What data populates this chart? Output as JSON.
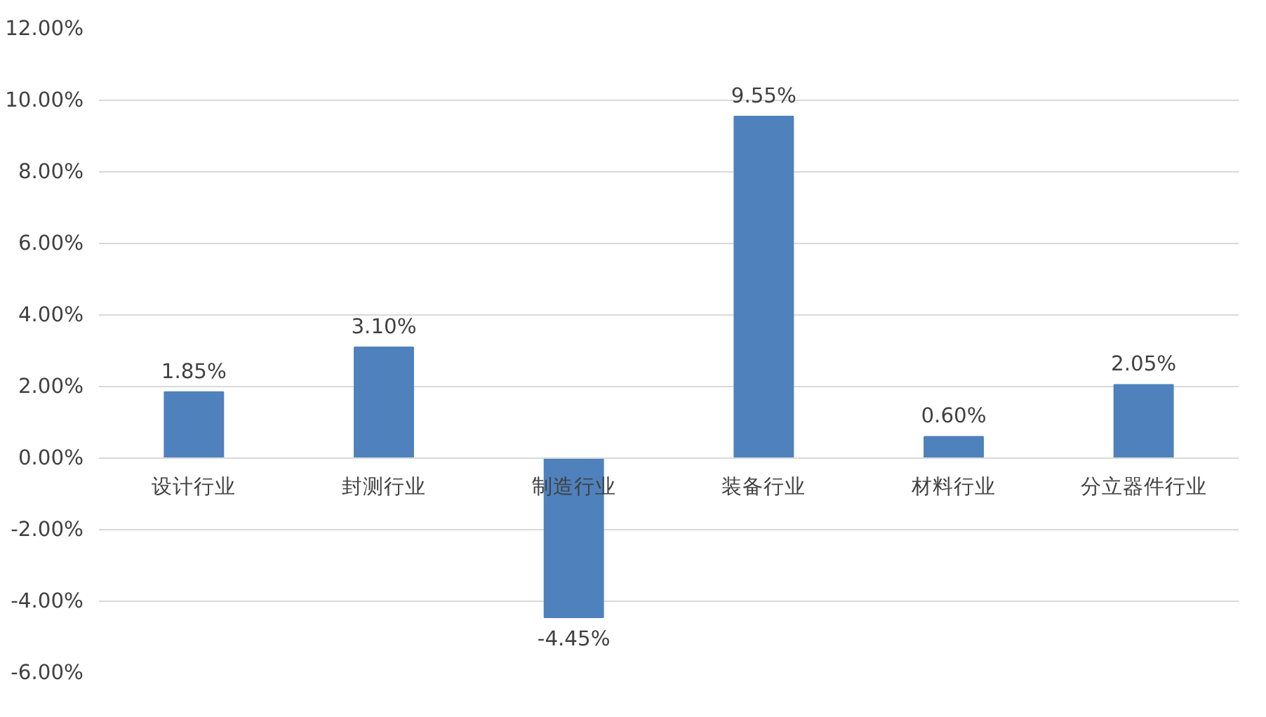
{
  "chart_data": {
    "type": "bar",
    "categories": [
      "设计行业",
      "封测行业",
      "制造行业",
      "装备行业",
      "材料行业",
      "分立器件行业"
    ],
    "values": [
      1.85,
      3.1,
      -4.45,
      9.55,
      0.6,
      2.05
    ],
    "value_labels": [
      "1.85%",
      "3.10%",
      "-4.45%",
      "9.55%",
      "0.60%",
      "2.05%"
    ],
    "color": "#4f81bd",
    "ylim": [
      -6,
      12
    ],
    "yticks": [
      {
        "value": -6,
        "label": "-6.00%"
      },
      {
        "value": -4,
        "label": "-4.00%"
      },
      {
        "value": -2,
        "label": "-2.00%"
      },
      {
        "value": 0,
        "label": "0.00%"
      },
      {
        "value": 2,
        "label": "2.00%"
      },
      {
        "value": 4,
        "label": "4.00%"
      },
      {
        "value": 6,
        "label": "6.00%"
      },
      {
        "value": 8,
        "label": "8.00%"
      },
      {
        "value": 10,
        "label": "10.00%"
      },
      {
        "value": 12,
        "label": "12.00%"
      }
    ],
    "grid": "y"
  }
}
